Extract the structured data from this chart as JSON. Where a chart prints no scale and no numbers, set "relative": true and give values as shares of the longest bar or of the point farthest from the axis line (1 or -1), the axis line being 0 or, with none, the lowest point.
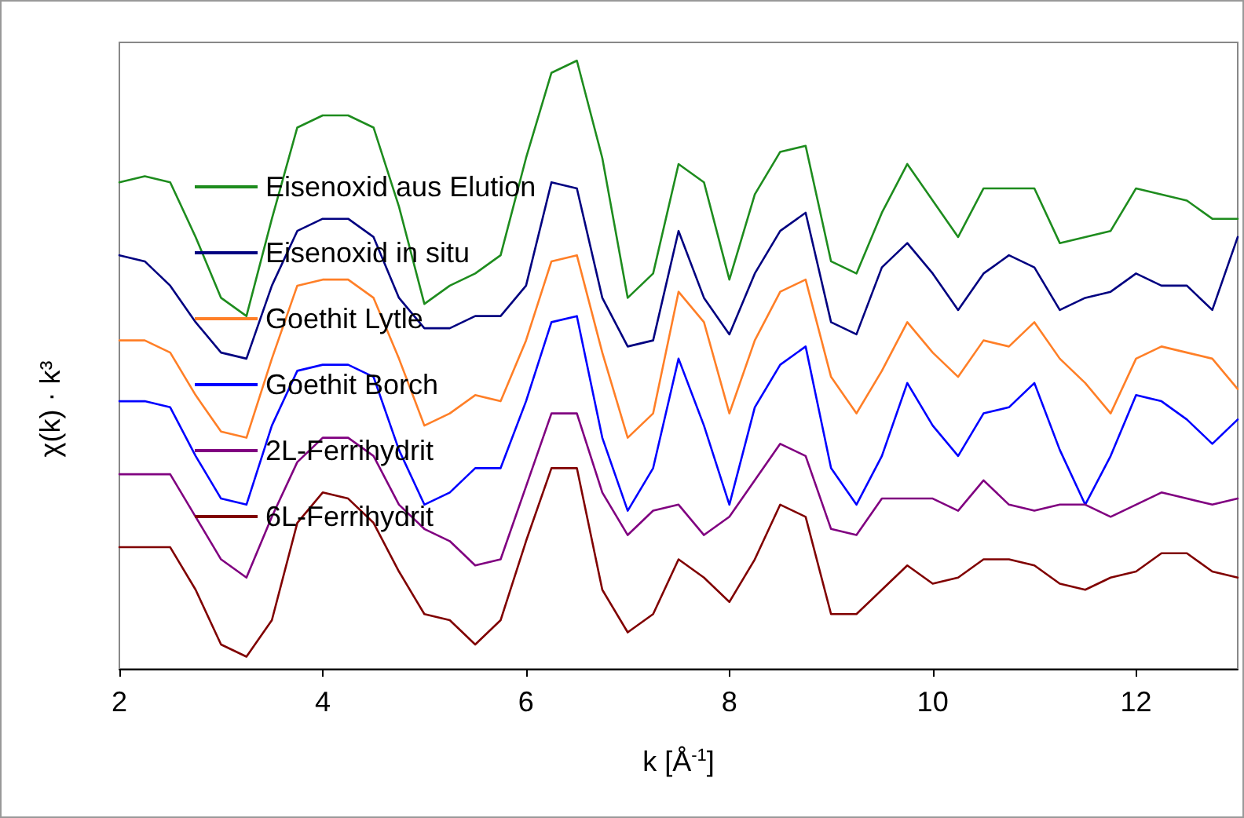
{
  "chart_data": {
    "type": "line",
    "relative": true,
    "xlabel": "k [Å$^{-1}$]",
    "ylabel": "χ(k) · k³",
    "x": [
      2,
      2.25,
      2.5,
      2.75,
      3,
      3.25,
      3.5,
      3.75,
      4,
      4.25,
      4.5,
      4.75,
      5,
      5.25,
      5.5,
      5.75,
      6,
      6.25,
      6.5,
      6.75,
      7,
      7.25,
      7.5,
      7.75,
      8,
      8.25,
      8.5,
      8.75,
      9,
      9.25,
      9.5,
      9.75,
      10,
      10.25,
      10.5,
      10.75,
      11,
      11.25,
      11.5,
      11.75,
      12,
      12.25,
      12.5,
      12.75,
      13
    ],
    "xlim": [
      2,
      13
    ],
    "xticks": [
      2,
      4,
      6,
      8,
      10,
      12
    ],
    "grid": false,
    "legend": "left",
    "marker": "none",
    "line_style": "solid",
    "series": [
      {
        "name": "Eisenoxid aus Elution",
        "color": "#1e8c1e",
        "values": [
          0.8,
          0.81,
          0.8,
          0.71,
          0.61,
          0.58,
          0.74,
          0.89,
          0.91,
          0.91,
          0.89,
          0.76,
          0.6,
          0.63,
          0.65,
          0.68,
          0.84,
          0.98,
          1.0,
          0.84,
          0.61,
          0.65,
          0.83,
          0.8,
          0.64,
          0.78,
          0.85,
          0.86,
          0.67,
          0.65,
          0.75,
          0.83,
          0.77,
          0.71,
          0.79,
          0.79,
          0.79,
          0.7,
          0.71,
          0.72,
          0.79,
          0.78,
          0.77,
          0.74,
          0.74
        ]
      },
      {
        "name": "Eisenoxid in situ",
        "color": "#000080",
        "values": [
          0.68,
          0.67,
          0.63,
          0.57,
          0.52,
          0.51,
          0.63,
          0.72,
          0.74,
          0.74,
          0.71,
          0.61,
          0.56,
          0.56,
          0.58,
          0.58,
          0.63,
          0.8,
          0.79,
          0.61,
          0.53,
          0.54,
          0.72,
          0.61,
          0.55,
          0.65,
          0.72,
          0.75,
          0.57,
          0.55,
          0.66,
          0.7,
          0.65,
          0.59,
          0.65,
          0.68,
          0.66,
          0.59,
          0.61,
          0.62,
          0.65,
          0.63,
          0.63,
          0.59,
          0.71
        ]
      },
      {
        "name": "Goethit Lytle",
        "color": "#ff7f27",
        "values": [
          0.54,
          0.54,
          0.52,
          0.45,
          0.39,
          0.38,
          0.51,
          0.63,
          0.64,
          0.64,
          0.61,
          0.51,
          0.4,
          0.42,
          0.45,
          0.44,
          0.54,
          0.67,
          0.68,
          0.52,
          0.38,
          0.42,
          0.62,
          0.57,
          0.42,
          0.54,
          0.62,
          0.64,
          0.48,
          0.42,
          0.49,
          0.57,
          0.52,
          0.48,
          0.54,
          0.53,
          0.57,
          0.51,
          0.47,
          0.42,
          0.51,
          0.53,
          0.52,
          0.51,
          0.46
        ]
      },
      {
        "name": "Goethit Borch",
        "color": "#0000ff",
        "values": [
          0.44,
          0.44,
          0.43,
          0.35,
          0.28,
          0.27,
          0.4,
          0.49,
          0.5,
          0.5,
          0.48,
          0.36,
          0.27,
          0.29,
          0.33,
          0.33,
          0.44,
          0.57,
          0.58,
          0.38,
          0.26,
          0.33,
          0.51,
          0.4,
          0.27,
          0.43,
          0.5,
          0.53,
          0.33,
          0.27,
          0.35,
          0.47,
          0.4,
          0.35,
          0.42,
          0.43,
          0.47,
          0.36,
          0.27,
          0.35,
          0.45,
          0.44,
          0.41,
          0.37,
          0.41
        ]
      },
      {
        "name": "2L-Ferrihydrit",
        "color": "#800080",
        "values": [
          0.32,
          0.32,
          0.32,
          0.25,
          0.18,
          0.15,
          0.25,
          0.34,
          0.38,
          0.38,
          0.35,
          0.27,
          0.23,
          0.21,
          0.17,
          0.18,
          0.3,
          0.42,
          0.42,
          0.29,
          0.22,
          0.26,
          0.27,
          0.22,
          0.25,
          0.31,
          0.37,
          0.35,
          0.23,
          0.22,
          0.28,
          0.28,
          0.28,
          0.26,
          0.31,
          0.27,
          0.26,
          0.27,
          0.27,
          0.25,
          0.27,
          0.29,
          0.28,
          0.27,
          0.28
        ]
      },
      {
        "name": "6L-Ferrihydrit",
        "color": "#800000",
        "values": [
          0.2,
          0.2,
          0.2,
          0.13,
          0.04,
          0.02,
          0.08,
          0.24,
          0.29,
          0.28,
          0.24,
          0.16,
          0.09,
          0.08,
          0.04,
          0.08,
          0.21,
          0.33,
          0.33,
          0.13,
          0.06,
          0.09,
          0.18,
          0.15,
          0.11,
          0.18,
          0.27,
          0.25,
          0.09,
          0.09,
          0.13,
          0.17,
          0.14,
          0.15,
          0.18,
          0.18,
          0.17,
          0.14,
          0.13,
          0.15,
          0.16,
          0.19,
          0.19,
          0.16,
          0.15
        ]
      }
    ]
  }
}
